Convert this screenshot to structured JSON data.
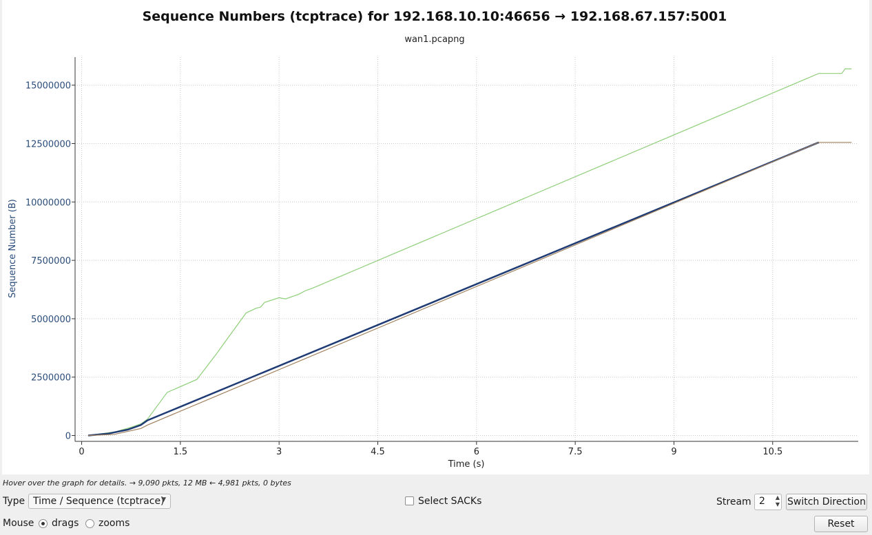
{
  "chart_data": {
    "type": "line",
    "title": "Sequence Numbers (tcptrace) for 192.168.10.10:46656 → 192.168.67.157:5001",
    "subtitle": "wan1.pcapng",
    "xlabel": "Time (s)",
    "ylabel": "Sequence Number (B)",
    "xlim": [
      -0.1,
      11.8
    ],
    "ylim": [
      -250000,
      16200000
    ],
    "xticks": [
      0,
      1.5,
      3,
      4.5,
      6,
      7.5,
      9,
      10.5
    ],
    "xtick_labels": [
      "0",
      "1.5",
      "3",
      "4.5",
      "6",
      "7.5",
      "9",
      "10.5"
    ],
    "yticks": [
      0,
      2500000,
      5000000,
      7500000,
      10000000,
      12500000,
      15000000
    ],
    "ytick_labels": [
      "0",
      "2500000",
      "5000000",
      "7500000",
      "10000000",
      "12500000",
      "15000000"
    ],
    "grid": true,
    "series": [
      {
        "color": "#8fcf7a",
        "x": [
          0.1,
          0.5,
          0.75,
          0.9,
          1.0,
          1.3,
          1.75,
          2.05,
          2.1,
          2.5,
          2.65,
          2.72,
          2.78,
          3.0,
          3.1,
          3.3,
          3.4,
          3.5,
          11.2,
          11.55,
          11.6,
          11.7
        ],
        "y": [
          0,
          150000,
          350000,
          500000,
          700000,
          1850000,
          2400000,
          3500000,
          3700000,
          5250000,
          5450000,
          5500000,
          5700000,
          5900000,
          5850000,
          6050000,
          6200000,
          6300000,
          15500000,
          15500000,
          15700000,
          15700000
        ]
      },
      {
        "color": "#1f3b73",
        "x": [
          0.1,
          0.4,
          0.7,
          0.9,
          1.0,
          11.2
        ],
        "y": [
          0,
          80000,
          250000,
          450000,
          650000,
          12550000
        ]
      },
      {
        "color": "#a0805c",
        "x": [
          0.1,
          0.5,
          0.9,
          1.0,
          11.2,
          11.7
        ],
        "y": [
          0,
          50000,
          300000,
          450000,
          12550000,
          12550000
        ]
      }
    ]
  },
  "hint_text": "Hover over the graph for details. → 9,090 pkts, 12 MB ← 4,981 pkts, 0 bytes",
  "controls": {
    "type_label": "Type",
    "type_value": "Time / Sequence (tcptrace)",
    "select_sacks_label": "Select SACKs",
    "stream_label": "Stream",
    "stream_value": "2",
    "switch_direction_label": "Switch Direction",
    "mouse_label": "Mouse",
    "drags_label": "drags",
    "zooms_label": "zooms",
    "reset_label": "Reset"
  }
}
